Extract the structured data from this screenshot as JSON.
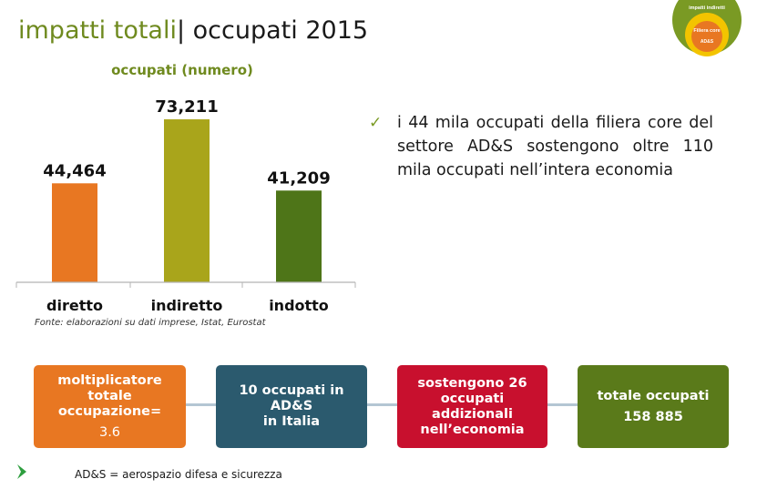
{
  "header": {
    "title_part1": "impatti totali",
    "title_part2": "| occupati 2015"
  },
  "badge": {
    "outer_label": "impatti indiretti",
    "inner_label": "Filiera core",
    "core_label": "AD&S"
  },
  "chart_data": {
    "type": "bar",
    "title": "occupati  (numero)",
    "categories": [
      "diretto",
      "indiretto",
      "indotto"
    ],
    "values": [
      44464,
      73211,
      41209
    ],
    "value_labels": [
      "44,464",
      "73,211",
      "41,209"
    ],
    "colors": [
      "#e87722",
      "#a9a51b",
      "#4e7518"
    ],
    "ylim": [
      0,
      90000
    ],
    "grid": false,
    "legend": "none"
  },
  "bullet": {
    "text": "i 44 mila occupati della filiera core del settore AD&S sostengono oltre 110 mila occupati nell’intera economia"
  },
  "source": "Fonte: elaborazioni su dati imprese, Istat, Eurostat",
  "flow": [
    {
      "line1": "moltiplicatore totale",
      "line2": "occupazione=",
      "line3": "3.6"
    },
    {
      "line1": "10 occupati in AD&S",
      "line2": "in Italia"
    },
    {
      "line1": "sostengono 26",
      "line2": "occupati addizionali",
      "line3": "nell’economia"
    },
    {
      "line1": "totale occupati",
      "line2": "158 885"
    }
  ],
  "footnote": "AD&S = aerospazio difesa e sicurezza"
}
